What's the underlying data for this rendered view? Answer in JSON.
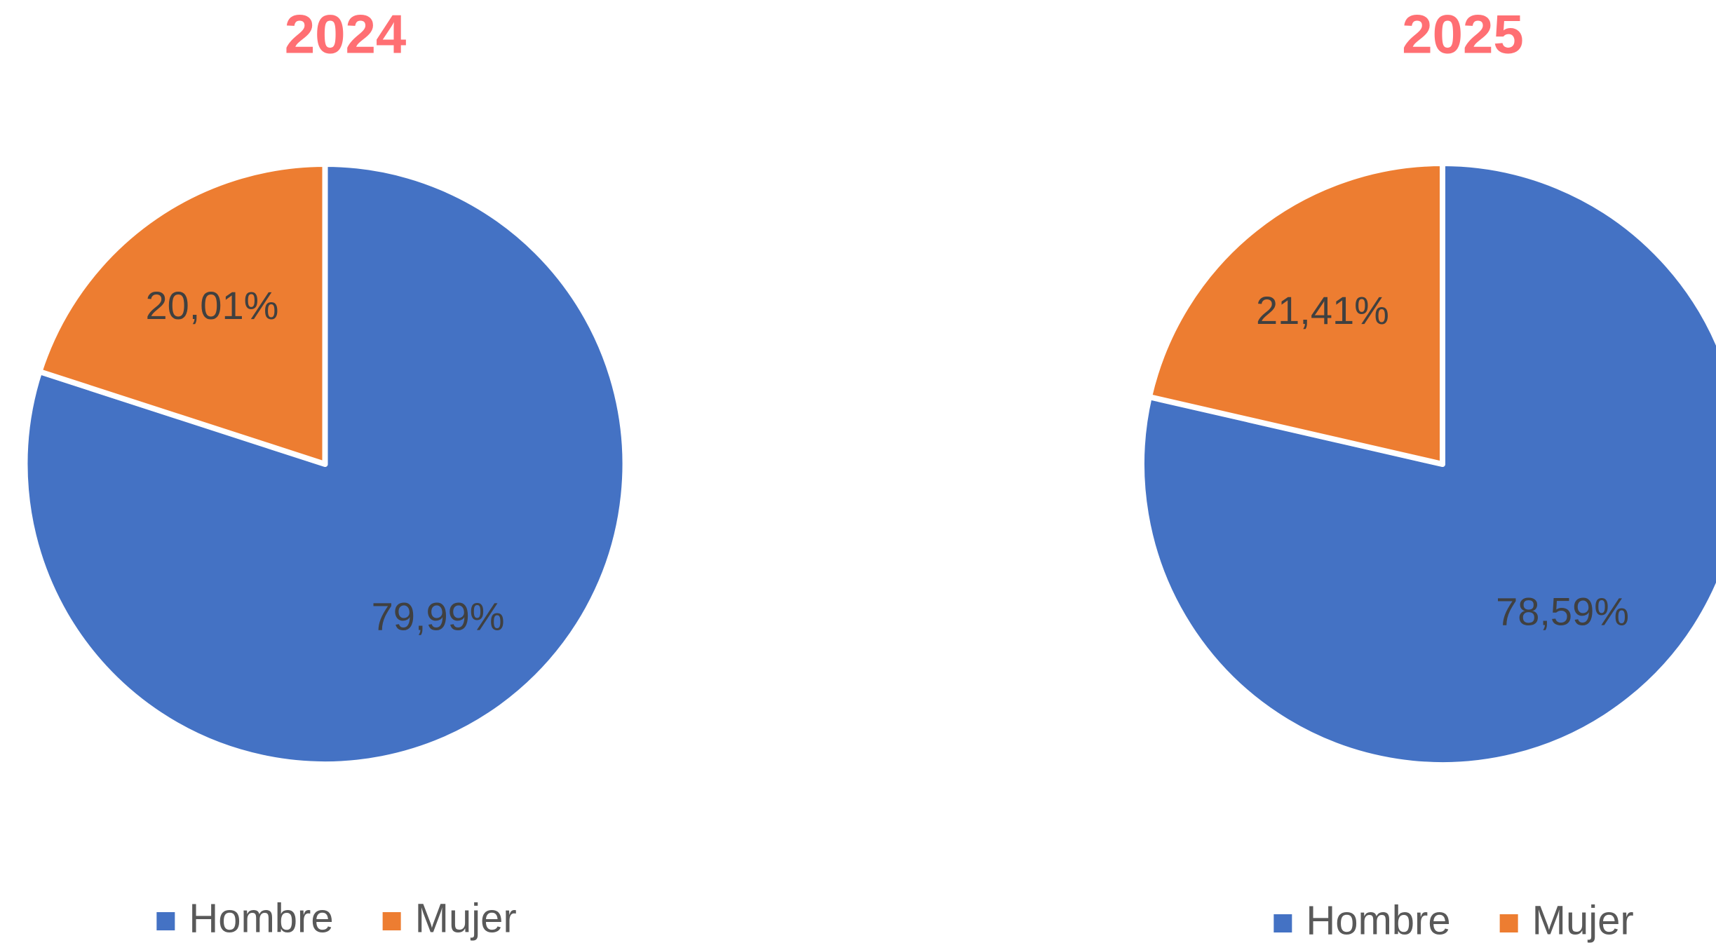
{
  "chart_data": [
    {
      "type": "pie",
      "title": "2024",
      "categories": [
        "Hombre",
        "Mujer"
      ],
      "values": [
        79.99,
        20.01
      ],
      "value_labels": [
        "79,99%",
        "20,01%"
      ],
      "colors": [
        "#4472c4",
        "#ed7d31"
      ]
    },
    {
      "type": "pie",
      "title": "2025",
      "categories": [
        "Hombre",
        "Mujer"
      ],
      "values": [
        78.59,
        21.41
      ],
      "value_labels": [
        "78,59%",
        "21,41%"
      ],
      "colors": [
        "#4472c4",
        "#ed7d31"
      ]
    }
  ]
}
